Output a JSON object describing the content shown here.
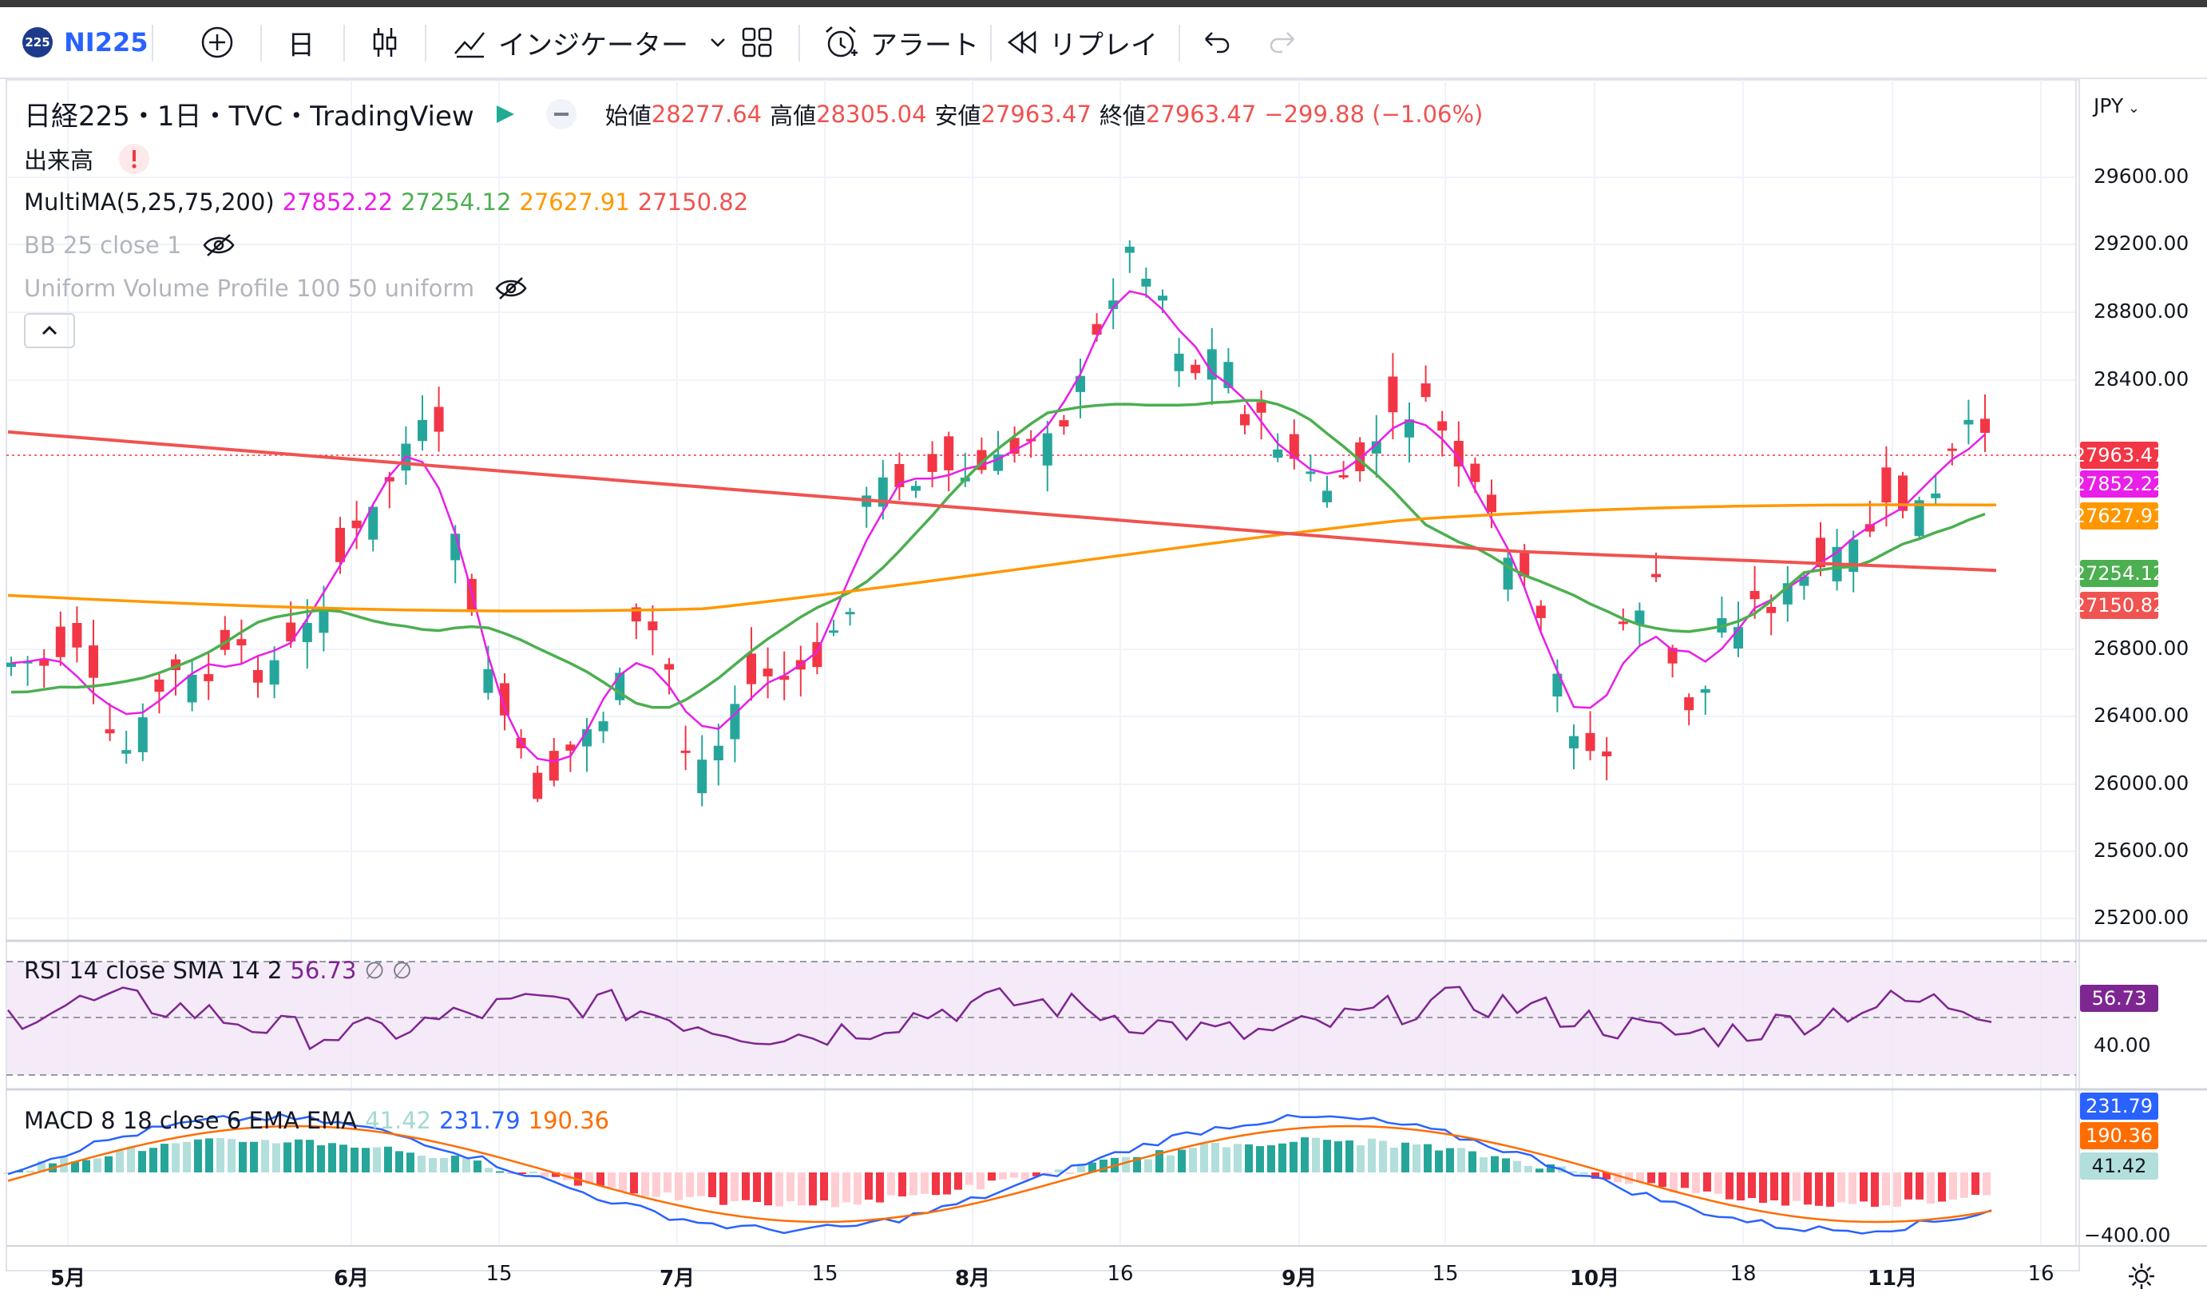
{
  "toolbar": {
    "symbol_badge": "225",
    "symbol": "NI225",
    "interval": "日",
    "indicators": "インジケーター",
    "alert": "アラート",
    "replay": "リプレイ"
  },
  "legend": {
    "title": "日経225・1日・TVC・TradingView",
    "open_label": "始値",
    "open": "28277.64",
    "high_label": "高値",
    "high": "28305.04",
    "low_label": "安値",
    "low": "27963.47",
    "close_label": "終値",
    "close": "27963.47",
    "change": "−299.88 (−1.06%)",
    "volume": "出来高",
    "multima_label": "MultiMA(5,25,75,200)",
    "ma5": "27852.22",
    "ma25": "27254.12",
    "ma75": "27627.91",
    "ma200": "27150.82",
    "bb": "BB 25 close 1",
    "vp": "Uniform Volume Profile 100 50 uniform",
    "rsi_label": "RSI 14 close SMA 14 2",
    "rsi_value": "56.73",
    "rsi_extra": "∅ ∅",
    "macd_label": "MACD 8 18 close 6 EMA EMA",
    "macd_hist": "41.42",
    "macd_line": "231.79",
    "macd_signal": "190.36"
  },
  "price_axis": {
    "currency": "JPY",
    "ticks": [
      "29600.00",
      "29200.00",
      "28800.00",
      "28400.00",
      "26800.00",
      "26400.00",
      "26000.00",
      "25600.00",
      "25200.00"
    ],
    "rsi_tick": "40.00",
    "macd_tick": "−400.00"
  },
  "price_labels": {
    "last": "27963.47",
    "ma5": "27852.22",
    "ma75": "27627.91",
    "ma25": "27254.12",
    "ma200": "27150.82",
    "rsi": "56.73",
    "macd": "231.79",
    "signal": "190.36",
    "hist": "41.42"
  },
  "time_axis": [
    "5月",
    "6月",
    "15",
    "7月",
    "15",
    "8月",
    "16",
    "9月",
    "15",
    "10月",
    "18",
    "11月",
    "16"
  ],
  "colors": {
    "up": "#26a69a",
    "down": "#f23645",
    "ma5": "#e91ee8",
    "ma25": "#4caf50",
    "ma75": "#ff9800",
    "ma200": "#f05350",
    "rsi": "#7e2691",
    "macd": "#2962ff",
    "signal": "#ff6d00"
  }
}
